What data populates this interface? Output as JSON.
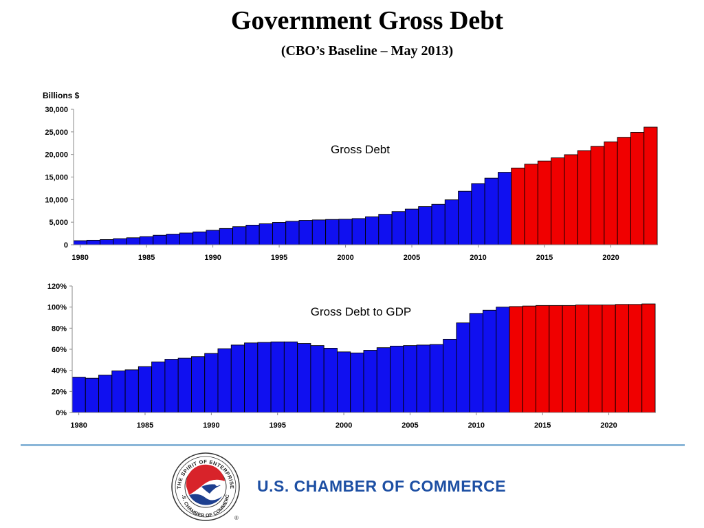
{
  "page": {
    "title": "Government Gross Debt",
    "subtitle": "(CBO’s Baseline – May 2013)"
  },
  "chart_data": [
    {
      "type": "bar",
      "id": "gross-debt",
      "title": "Gross Debt",
      "ylabel": "Billions $",
      "xlabel": "",
      "ylim": [
        0,
        30000
      ],
      "yticks": [
        "0",
        "5,000",
        "10,000",
        "15,000",
        "20,000",
        "25,000",
        "30,000"
      ],
      "xticks": [
        "1980",
        "1985",
        "1990",
        "1995",
        "2000",
        "2005",
        "2010",
        "2015",
        "2020"
      ],
      "projection_start": 2013,
      "colors": {
        "actual": "#1010f0",
        "projected": "#f00000"
      },
      "x": [
        1980,
        1981,
        1982,
        1983,
        1984,
        1985,
        1986,
        1987,
        1988,
        1989,
        1990,
        1991,
        1992,
        1993,
        1994,
        1995,
        1996,
        1997,
        1998,
        1999,
        2000,
        2001,
        2002,
        2003,
        2004,
        2005,
        2006,
        2007,
        2008,
        2009,
        2010,
        2011,
        2012,
        2013,
        2014,
        2015,
        2016,
        2017,
        2018,
        2019,
        2020,
        2021,
        2022,
        2023
      ],
      "values": [
        900,
        1000,
        1150,
        1350,
        1550,
        1800,
        2100,
        2350,
        2600,
        2850,
        3200,
        3600,
        4000,
        4350,
        4650,
        4950,
        5200,
        5400,
        5500,
        5600,
        5650,
        5800,
        6200,
        6750,
        7350,
        7900,
        8450,
        8950,
        9950,
        11850,
        13550,
        14750,
        16050,
        17000,
        17850,
        18550,
        19250,
        19950,
        20850,
        21800,
        22800,
        23800,
        24900,
        26050
      ]
    },
    {
      "type": "bar",
      "id": "gross-debt-to-gdp",
      "title": "Gross Debt to GDP",
      "ylabel": "",
      "xlabel": "",
      "ylim": [
        0,
        120
      ],
      "yticks": [
        "0%",
        "20%",
        "40%",
        "60%",
        "80%",
        "100%",
        "120%"
      ],
      "xticks": [
        "1980",
        "1985",
        "1990",
        "1995",
        "2000",
        "2005",
        "2010",
        "2015",
        "2020"
      ],
      "projection_start": 2013,
      "colors": {
        "actual": "#1010f0",
        "projected": "#f00000"
      },
      "x": [
        1980,
        1981,
        1982,
        1983,
        1984,
        1985,
        1986,
        1987,
        1988,
        1989,
        1990,
        1991,
        1992,
        1993,
        1994,
        1995,
        1996,
        1997,
        1998,
        1999,
        2000,
        2001,
        2002,
        2003,
        2004,
        2005,
        2006,
        2007,
        2008,
        2009,
        2010,
        2011,
        2012,
        2013,
        2014,
        2015,
        2016,
        2017,
        2018,
        2019,
        2020,
        2021,
        2022,
        2023
      ],
      "values": [
        33.5,
        32.5,
        35.5,
        39.5,
        40.5,
        43.5,
        48,
        50.5,
        51.5,
        53,
        56,
        60.5,
        64,
        66,
        66.5,
        67,
        67,
        65.5,
        63.5,
        61,
        57.5,
        56.5,
        59,
        61.5,
        63,
        63.5,
        64,
        64.5,
        69.5,
        85,
        94,
        97,
        100,
        100.5,
        101,
        101.5,
        101.5,
        101.5,
        102,
        102,
        102,
        102.5,
        102.5,
        103
      ]
    }
  ],
  "footer": {
    "organization": "U.S. CHAMBER OF COMMERCE",
    "logo_text_top": "THE SPIRIT OF ENTERPRISE",
    "logo_text_bottom": "U.S. CHAMBER OF COMMERCE",
    "registered_mark": "®"
  }
}
